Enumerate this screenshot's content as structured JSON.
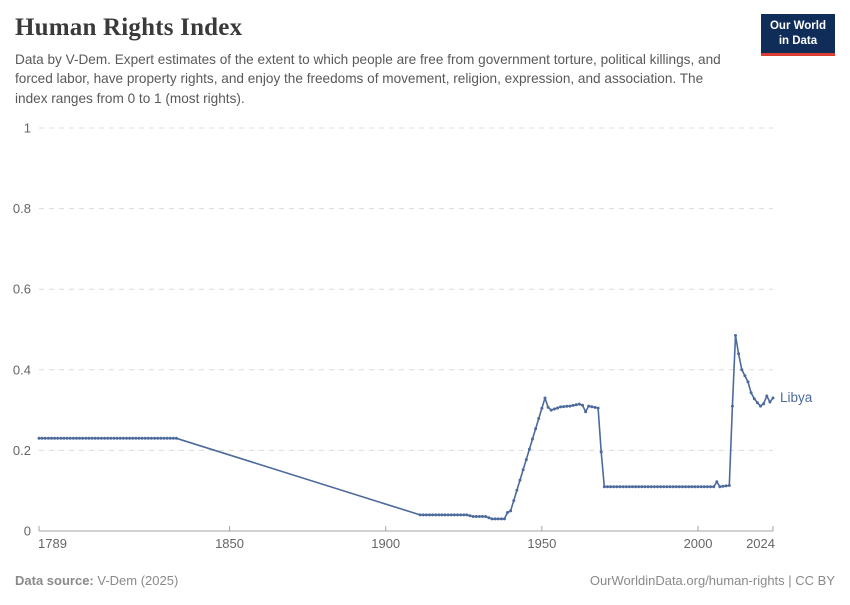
{
  "header": {
    "title": "Human Rights Index",
    "subtitle": "Data by V-Dem. Expert estimates of the extent to which people are free from government torture, political killings, and forced labor, have property rights, and enjoy the freedoms of movement, religion, expression, and association. The index ranges from 0 to 1 (most rights).",
    "logo": {
      "line1": "Our World",
      "line2": "in Data",
      "bg_color": "#102d5a",
      "accent_color": "#dc3d33"
    }
  },
  "chart_data": {
    "type": "line",
    "title": "Human Rights Index",
    "xlabel": "",
    "ylabel": "",
    "xlim": [
      1789,
      2024
    ],
    "ylim": [
      0,
      1
    ],
    "x_ticks": [
      1789,
      1850,
      1900,
      1950,
      2000,
      2024
    ],
    "y_ticks": [
      0,
      0.2,
      0.4,
      0.6,
      0.8,
      1
    ],
    "grid": "horizontal dashed",
    "legend_position": "end-of-line label",
    "line_color": "#4c6a9c",
    "gridline_color": "#dcdcdc",
    "axis_color": "#a3a3a3",
    "tick_label_color": "#666666",
    "marker_gap_years": [
      1834,
      1910
    ],
    "series": [
      {
        "name": "Libya",
        "points": [
          [
            1789,
            0.23
          ],
          [
            1833,
            0.23
          ],
          [
            1911,
            0.04
          ],
          [
            1926,
            0.04
          ],
          [
            1928,
            0.036
          ],
          [
            1932,
            0.036
          ],
          [
            1934,
            0.03
          ],
          [
            1938,
            0.03
          ],
          [
            1939,
            0.046
          ],
          [
            1940,
            0.05
          ],
          [
            1951,
            0.33
          ],
          [
            1952,
            0.307
          ],
          [
            1953,
            0.3
          ],
          [
            1956,
            0.308
          ],
          [
            1959,
            0.31
          ],
          [
            1962,
            0.315
          ],
          [
            1963,
            0.312
          ],
          [
            1964,
            0.296
          ],
          [
            1965,
            0.31
          ],
          [
            1968,
            0.305
          ],
          [
            1969,
            0.196
          ],
          [
            1970,
            0.11
          ],
          [
            2005,
            0.11
          ],
          [
            2006,
            0.122
          ],
          [
            2007,
            0.11
          ],
          [
            2010,
            0.113
          ],
          [
            2011,
            0.31
          ],
          [
            2012,
            0.485
          ],
          [
            2013,
            0.44
          ],
          [
            2014,
            0.4
          ],
          [
            2015,
            0.385
          ],
          [
            2016,
            0.37
          ],
          [
            2017,
            0.343
          ],
          [
            2018,
            0.328
          ],
          [
            2019,
            0.318
          ],
          [
            2020,
            0.31
          ],
          [
            2021,
            0.316
          ],
          [
            2022,
            0.335
          ],
          [
            2023,
            0.32
          ],
          [
            2024,
            0.33
          ]
        ]
      }
    ]
  },
  "footer": {
    "source_label": "Data source:",
    "source_value": " V-Dem (2025)",
    "right_text": "OurWorldinData.org/human-rights | CC BY"
  }
}
